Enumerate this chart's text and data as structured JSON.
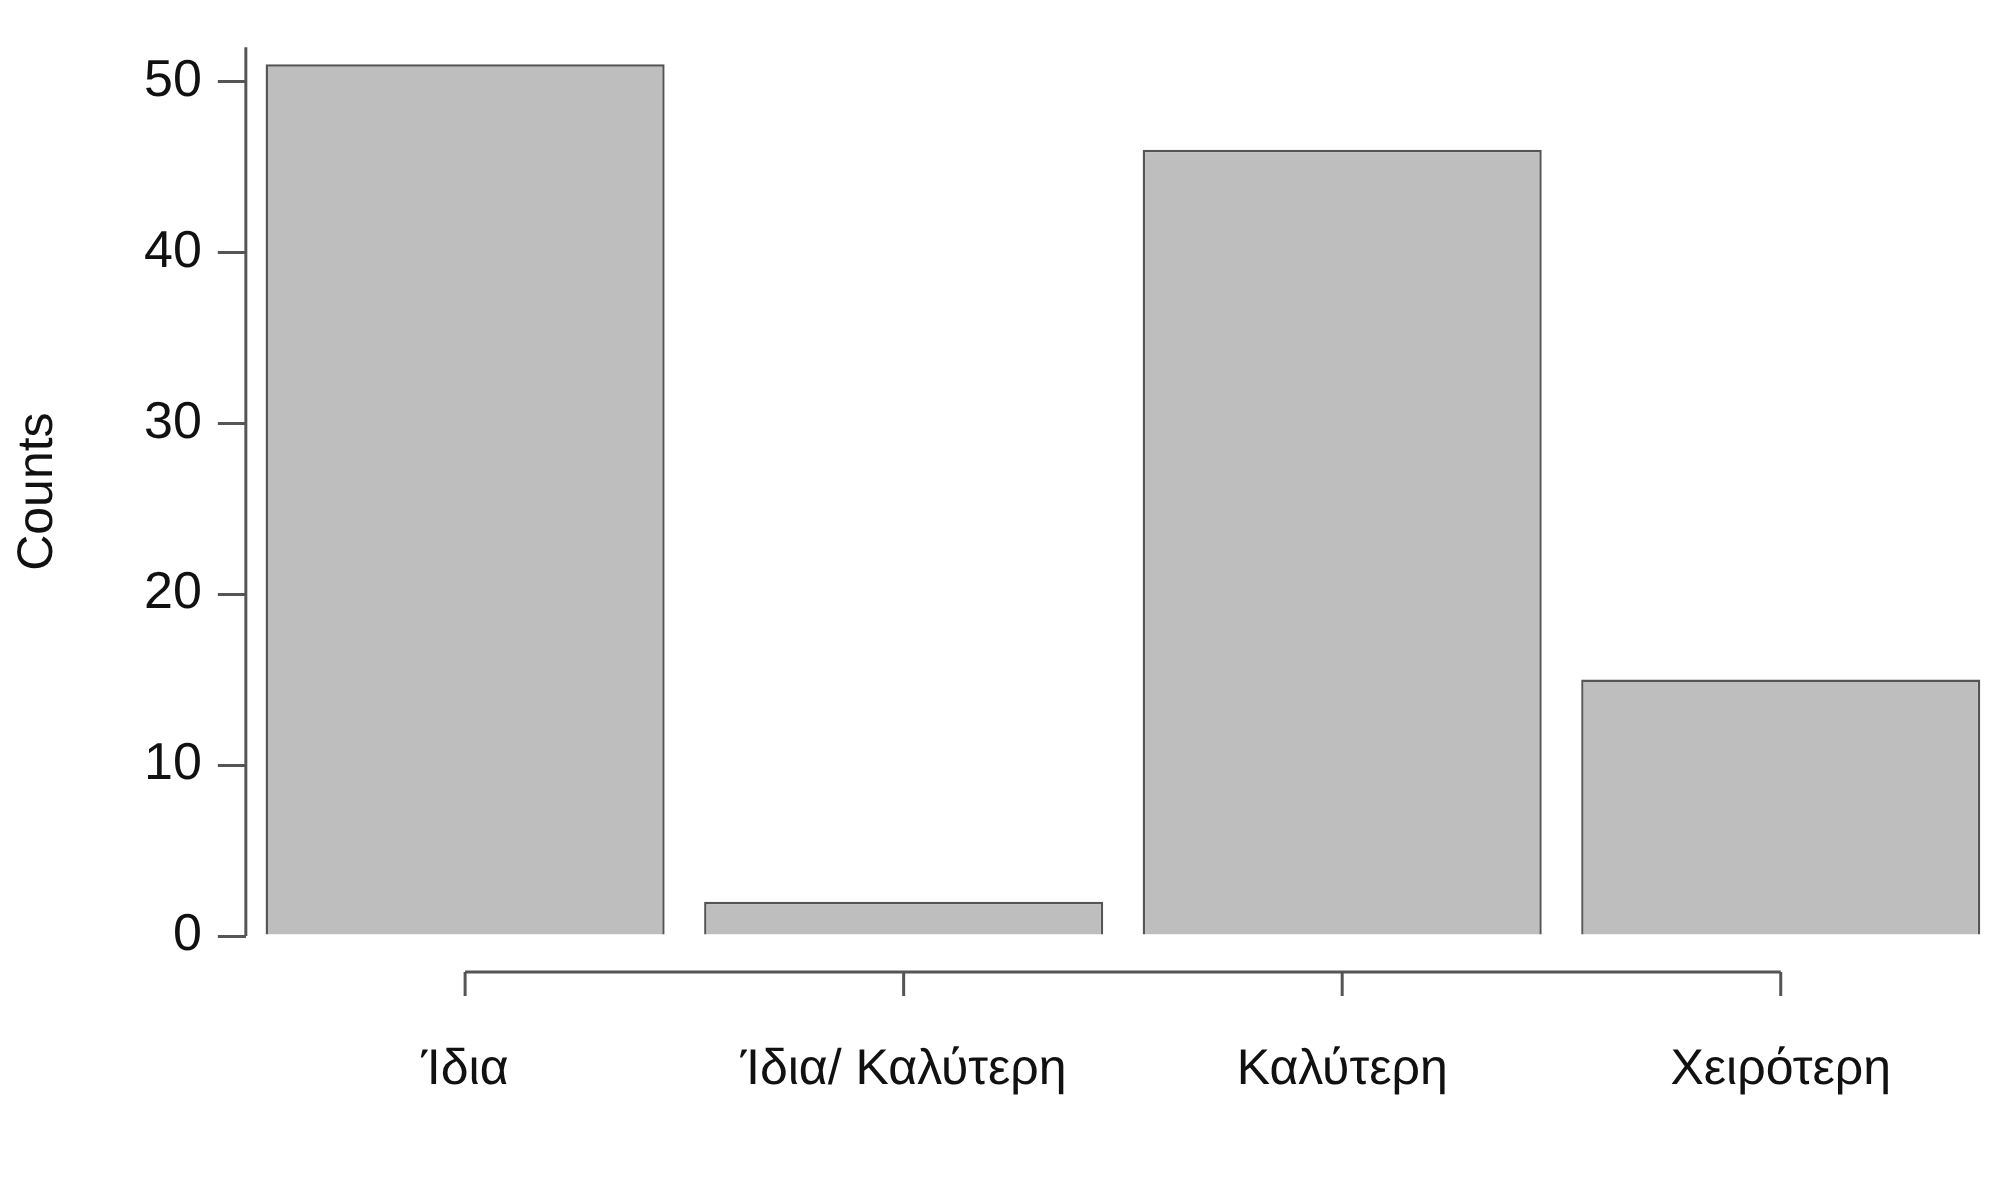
{
  "chart_data": {
    "type": "bar",
    "ylabel": "Counts",
    "categories": [
      "Ίδια",
      "Ίδια/ Καλύτερη",
      "Καλύτερη",
      "Χειρότερη"
    ],
    "values": [
      51,
      2,
      46,
      15
    ],
    "color": "#bebebe",
    "ylim": [
      0,
      52
    ],
    "yticks": [
      0,
      10,
      20,
      30,
      40,
      50
    ],
    "grid": false,
    "legend": false
  }
}
